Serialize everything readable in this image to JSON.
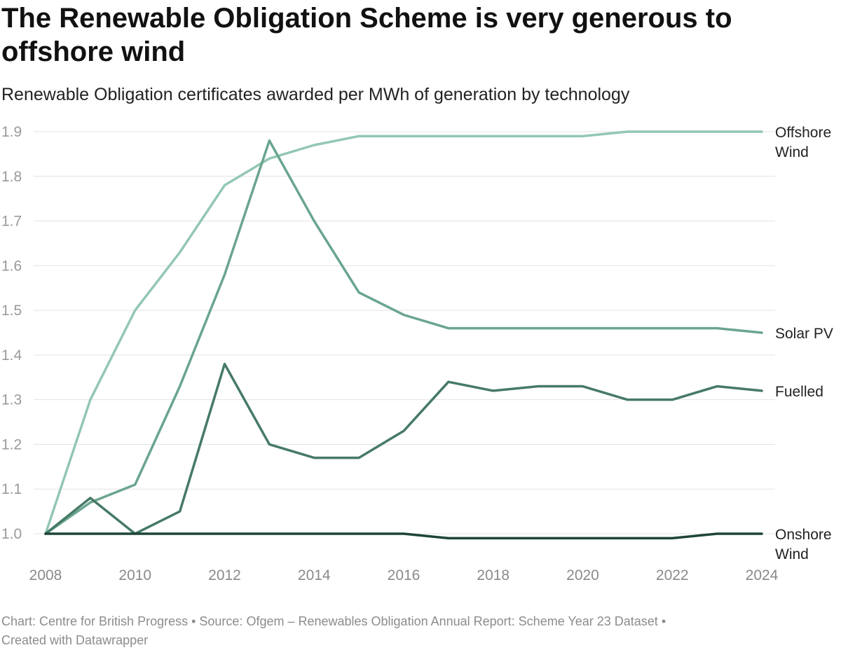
{
  "title": "The Renewable Obligation Scheme is very generous to offshore wind",
  "subtitle": "Renewable Obligation certificates awarded per MWh of generation by technology",
  "footer": {
    "credit": "Chart: Centre for British Progress",
    "separator": " • ",
    "source": "Source: Ofgem – Renewables Obligation Annual Report: Scheme Year 23 Dataset",
    "tool": "Created with Datawrapper"
  },
  "chart_data": {
    "type": "line",
    "title": "The Renewable Obligation Scheme is very generous to offshore wind",
    "subtitle": "Renewable Obligation certificates awarded per MWh of generation by technology",
    "xlabel": "",
    "ylabel": "",
    "x": [
      2008,
      2009,
      2010,
      2011,
      2012,
      2013,
      2014,
      2015,
      2016,
      2017,
      2018,
      2019,
      2020,
      2021,
      2022,
      2023,
      2024
    ],
    "xlim": [
      2008,
      2024
    ],
    "ylim": [
      1.0,
      1.9
    ],
    "x_ticks": [
      "2008",
      "2010",
      "2012",
      "2014",
      "2016",
      "2018",
      "2020",
      "2022",
      "2024"
    ],
    "y_ticks": [
      "1.0",
      "1.1",
      "1.2",
      "1.3",
      "1.4",
      "1.5",
      "1.6",
      "1.7",
      "1.8",
      "1.9"
    ],
    "grid": true,
    "legend": "direct labels at line ends (right)",
    "series": [
      {
        "name": "Offshore Wind",
        "label_lines": [
          "Offshore",
          "Wind"
        ],
        "color": "#93c7b3",
        "values": [
          1.0,
          1.3,
          1.5,
          1.63,
          1.78,
          1.84,
          1.87,
          1.89,
          1.89,
          1.89,
          1.89,
          1.89,
          1.89,
          1.9,
          1.9,
          1.9,
          1.9
        ]
      },
      {
        "name": "Solar PV",
        "label_lines": [
          "Solar PV"
        ],
        "color": "#6aa58e",
        "values": [
          1.0,
          1.07,
          1.11,
          1.33,
          1.58,
          1.88,
          1.7,
          1.54,
          1.49,
          1.46,
          1.46,
          1.46,
          1.46,
          1.46,
          1.46,
          1.46,
          1.45
        ]
      },
      {
        "name": "Fuelled",
        "label_lines": [
          "Fuelled"
        ],
        "color": "#467a66",
        "values": [
          1.0,
          1.08,
          1.0,
          1.05,
          1.38,
          1.2,
          1.17,
          1.17,
          1.23,
          1.34,
          1.32,
          1.33,
          1.33,
          1.3,
          1.3,
          1.33,
          1.32
        ]
      },
      {
        "name": "Onshore Wind",
        "label_lines": [
          "Onshore",
          "Wind"
        ],
        "color": "#1d4536",
        "values": [
          1.0,
          1.0,
          1.0,
          1.0,
          1.0,
          1.0,
          1.0,
          1.0,
          1.0,
          0.99,
          0.99,
          0.99,
          0.99,
          0.99,
          0.99,
          1.0,
          1.0
        ]
      }
    ]
  }
}
